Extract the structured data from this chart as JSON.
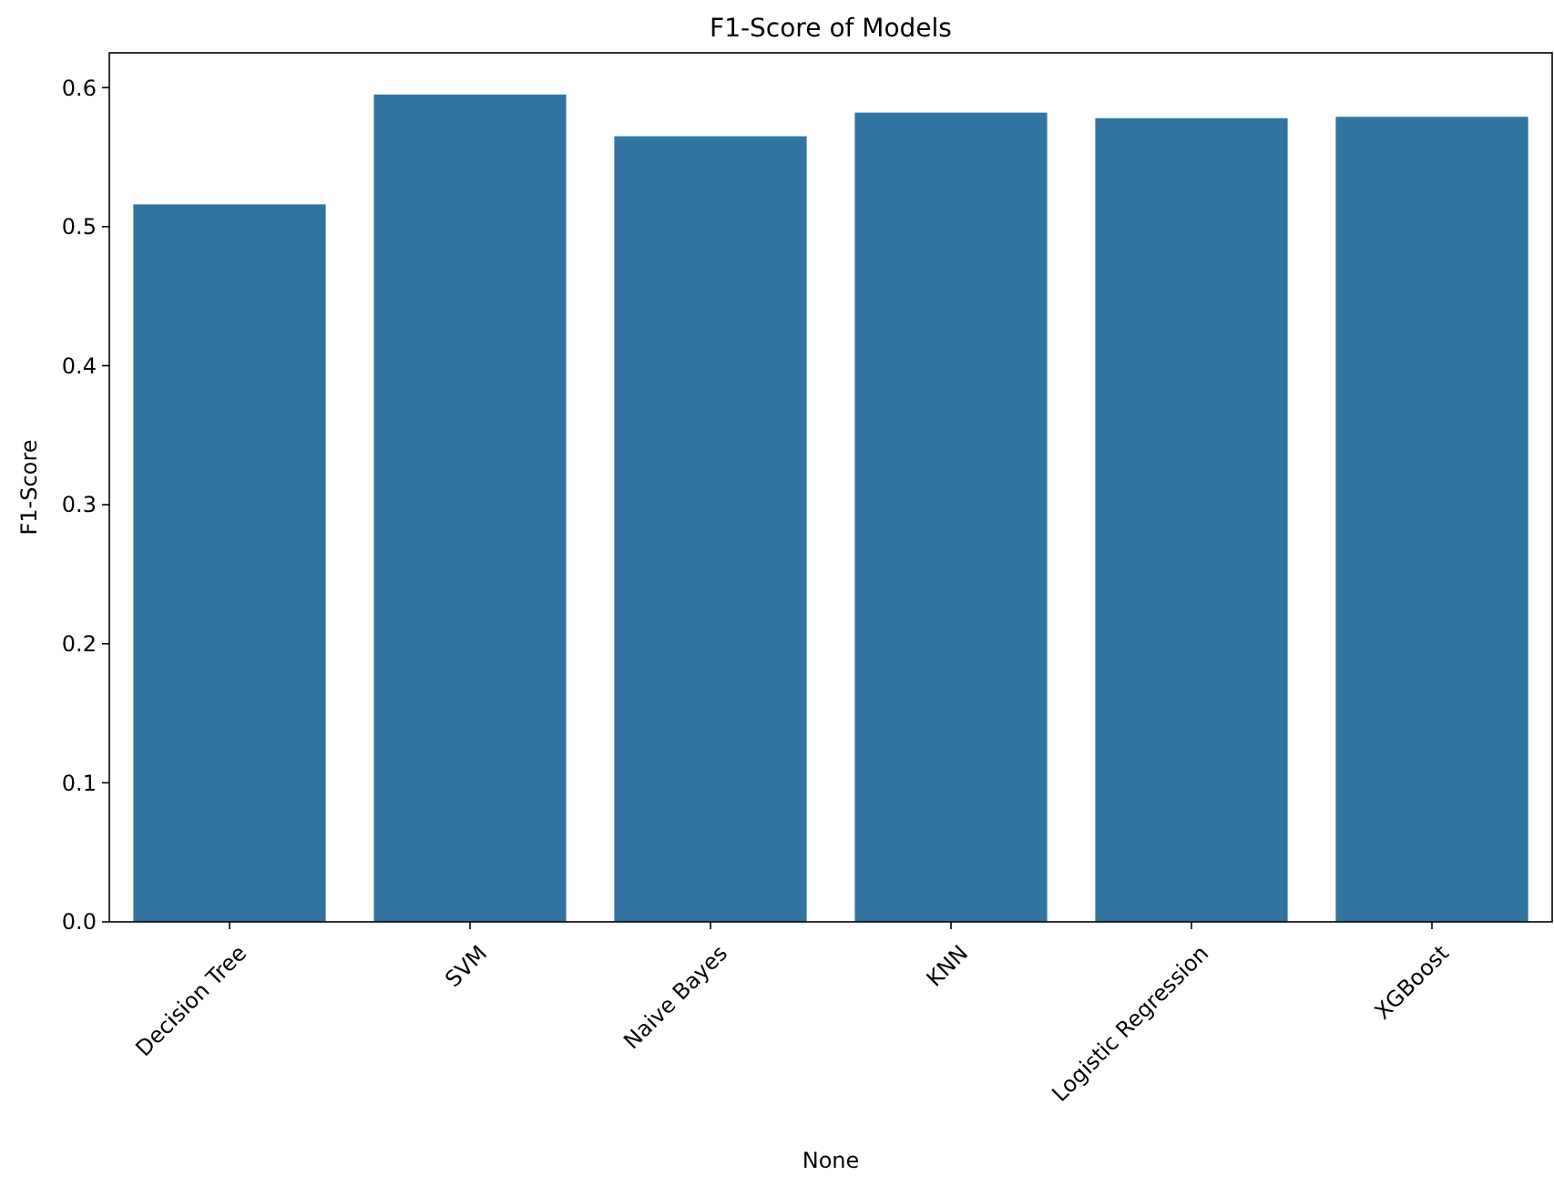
{
  "chart_data": {
    "type": "bar",
    "title": "F1-Score of Models",
    "xlabel": "None",
    "ylabel": "F1-Score",
    "categories": [
      "Decision Tree",
      "SVM",
      "Naive Bayes",
      "KNN",
      "Logistic Regression",
      "XGBoost"
    ],
    "values": [
      0.516,
      0.595,
      0.565,
      0.582,
      0.578,
      0.579
    ],
    "color": "#3274a1",
    "ylim": [
      0,
      0.625
    ],
    "yticks": [
      {
        "value": 0,
        "label": "0.0"
      },
      0.1,
      0.2,
      0.3,
      0.4,
      0.5,
      0.6
    ],
    "grid": false
  }
}
